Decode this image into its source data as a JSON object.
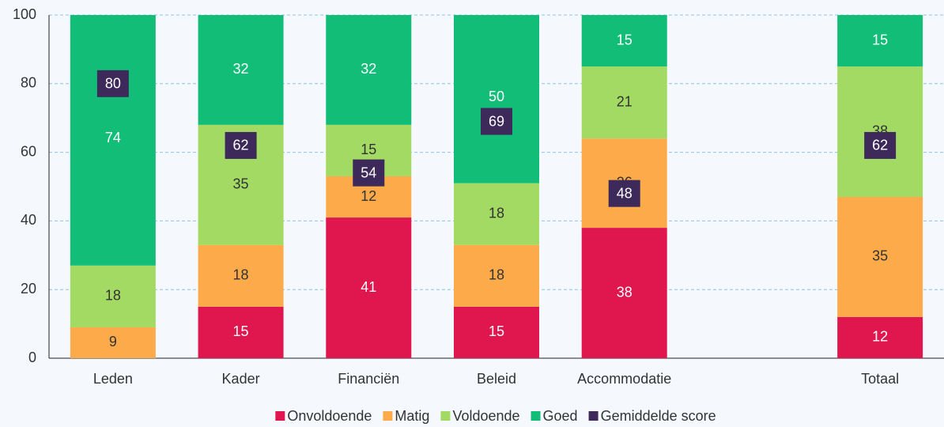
{
  "chart_data": {
    "type": "stacked_bar",
    "categories": [
      "Leden",
      "Kader",
      "Financiën",
      "Beleid",
      "Accommodatie",
      null,
      "Totaal"
    ],
    "series": [
      {
        "name": "Onvoldoende",
        "color": "#e0174f",
        "values": [
          null,
          15,
          41,
          15,
          38,
          null,
          12
        ]
      },
      {
        "name": "Matig",
        "color": "#fdab4a",
        "values": [
          9,
          18,
          12,
          18,
          26,
          null,
          35
        ]
      },
      {
        "name": "Voldoende",
        "color": "#a2da63",
        "values": [
          18,
          35,
          15,
          18,
          21,
          null,
          38
        ]
      },
      {
        "name": "Goed",
        "color": "#12bd78",
        "values": [
          74,
          32,
          32,
          50,
          15,
          null,
          15
        ]
      }
    ],
    "score": {
      "name": "Gemiddelde score",
      "color": "#3d2a5a",
      "values": [
        80,
        62,
        54,
        69,
        48,
        null,
        62
      ]
    },
    "ylim": [
      0,
      100
    ],
    "yticks": [
      0,
      20,
      40,
      60,
      80,
      100
    ],
    "grid": true,
    "legend": "bottom"
  }
}
